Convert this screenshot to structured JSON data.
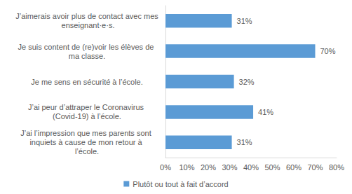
{
  "chart_data": {
    "type": "bar",
    "orientation": "horizontal",
    "categories": [
      "J’aimerais avoir plus de contact avec mes enseignant·e·s.",
      "Je suis content de (re)voir les élèves de ma classe.",
      "Je me sens en sécurité à l’école.",
      "J’ai peur d’attraper le Coronavirus (Covid-19) à l’école.",
      "J’ai l’impression que mes parents sont inquiets à cause de mon retour à l’école."
    ],
    "series": [
      {
        "name": "Plutôt ou tout à fait d’accord",
        "color": "#5b9bd5",
        "values": [
          31,
          70,
          32,
          41,
          31
        ],
        "value_labels": [
          "31%",
          "70%",
          "32%",
          "41%",
          "31%"
        ]
      }
    ],
    "xlim": [
      0,
      80
    ],
    "xticks": [
      {
        "value": 0,
        "label": "0%"
      },
      {
        "value": 10,
        "label": "10%"
      },
      {
        "value": 20,
        "label": "20%"
      },
      {
        "value": 30,
        "label": "30%"
      },
      {
        "value": 40,
        "label": "40%"
      },
      {
        "value": 50,
        "label": "50%"
      },
      {
        "value": 60,
        "label": "60%"
      },
      {
        "value": 70,
        "label": "70%"
      },
      {
        "value": 80,
        "label": "80%"
      }
    ],
    "grid": false,
    "legend": "bottom",
    "data_labels": true
  }
}
